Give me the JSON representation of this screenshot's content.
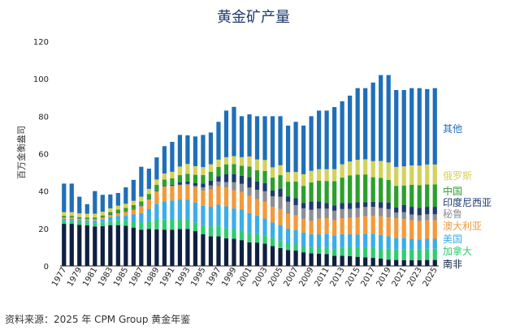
{
  "source": "资料来源：2025 年 CPM Group 黄金年鉴",
  "chart_data": {
    "type": "bar",
    "stacked": true,
    "title": "黄金矿产量",
    "ylabel": "百万金衡盎司",
    "ylim": [
      0,
      120
    ],
    "yticks": [
      0,
      20,
      40,
      60,
      80,
      100,
      120
    ],
    "grid": false,
    "legend_position": "right",
    "x": [
      1977,
      1978,
      1979,
      1980,
      1981,
      1982,
      1983,
      1984,
      1985,
      1986,
      1987,
      1988,
      1989,
      1990,
      1991,
      1992,
      1993,
      1994,
      1995,
      1996,
      1997,
      1998,
      1999,
      2000,
      2001,
      2002,
      2003,
      2004,
      2005,
      2006,
      2007,
      2008,
      2009,
      2010,
      2011,
      2012,
      2013,
      2014,
      2015,
      2016,
      2017,
      2018,
      2019,
      2020,
      2021,
      2022,
      2023,
      2024,
      2025
    ],
    "xtick_labels": [
      "1977",
      "1979",
      "1981",
      "1983",
      "1985",
      "1987",
      "1989",
      "1991",
      "1993",
      "1995",
      "1997",
      "1999",
      "2001",
      "2003",
      "2005",
      "2007",
      "2009",
      "2011",
      "2013",
      "2015",
      "2017",
      "2019",
      "2021",
      "2023",
      "2025"
    ],
    "series": [
      {
        "name": "南非",
        "color": "#0f1f40",
        "values": [
          22.5,
          22.5,
          22.0,
          21.7,
          21.1,
          21.3,
          21.8,
          21.8,
          21.5,
          20.5,
          19.4,
          19.8,
          19.6,
          19.4,
          19.4,
          19.7,
          19.8,
          18.6,
          16.9,
          15.8,
          15.8,
          14.8,
          14.5,
          13.8,
          12.6,
          12.5,
          11.9,
          10.6,
          9.6,
          8.5,
          8.2,
          7.3,
          6.8,
          6.5,
          6.4,
          5.4,
          5.4,
          5.3,
          4.9,
          4.6,
          4.3,
          3.9,
          3.4,
          3.2,
          3.1,
          3.1,
          3.1,
          3.2,
          3.2
        ]
      },
      {
        "name": "加拿大",
        "color": "#2ecc71",
        "values": [
          1.7,
          1.7,
          1.6,
          1.6,
          1.7,
          2.0,
          2.3,
          2.8,
          2.9,
          3.3,
          3.8,
          4.2,
          5.1,
          5.4,
          5.7,
          5.2,
          4.9,
          4.7,
          4.9,
          5.3,
          5.5,
          5.3,
          5.0,
          5.0,
          5.0,
          4.9,
          4.5,
          4.3,
          3.9,
          3.4,
          3.3,
          3.1,
          3.1,
          3.0,
          3.3,
          3.3,
          4.3,
          4.9,
          5.1,
          5.4,
          5.4,
          5.2,
          5.8,
          5.6,
          5.9,
          5.9,
          5.9,
          6.0,
          6.0
        ]
      },
      {
        "name": "美国",
        "color": "#3aaee8",
        "values": [
          1.0,
          1.0,
          0.9,
          1.0,
          1.4,
          1.5,
          2.0,
          2.1,
          2.4,
          3.7,
          5.0,
          6.5,
          8.5,
          9.7,
          9.9,
          10.6,
          10.6,
          10.6,
          10.3,
          10.5,
          11.4,
          11.8,
          11.2,
          11.3,
          10.7,
          9.6,
          8.9,
          8.3,
          8.5,
          8.1,
          7.7,
          7.5,
          7.1,
          7.4,
          7.5,
          7.6,
          7.3,
          6.8,
          6.7,
          7.2,
          7.5,
          7.5,
          6.6,
          6.1,
          5.9,
          5.3,
          5.2,
          5.3,
          5.3
        ]
      },
      {
        "name": "澳大利亚",
        "color": "#f39a3a",
        "values": [
          0.6,
          0.6,
          0.6,
          0.5,
          0.6,
          0.9,
          1.0,
          1.3,
          1.9,
          2.4,
          3.5,
          4.9,
          6.5,
          7.8,
          7.5,
          7.5,
          7.9,
          8.0,
          8.1,
          9.3,
          10.0,
          10.0,
          9.7,
          9.5,
          9.1,
          8.7,
          9.1,
          8.4,
          8.4,
          7.8,
          7.9,
          7.3,
          7.1,
          8.4,
          8.3,
          8.1,
          8.4,
          8.7,
          9.3,
          9.4,
          9.6,
          9.9,
          10.1,
          10.5,
          10.2,
          10.1,
          9.8,
          9.9,
          9.9
        ]
      },
      {
        "name": "秘鲁",
        "color": "#8b8f96",
        "values": [
          0.1,
          0.1,
          0.1,
          0.2,
          0.2,
          0.2,
          0.2,
          0.2,
          0.2,
          0.3,
          0.3,
          0.3,
          0.3,
          0.3,
          0.3,
          0.4,
          0.6,
          0.9,
          1.8,
          2.1,
          2.4,
          2.9,
          4.3,
          4.3,
          4.5,
          5.0,
          5.5,
          5.6,
          6.6,
          6.5,
          5.4,
          5.6,
          5.9,
          5.3,
          5.1,
          5.1,
          5.0,
          4.8,
          4.9,
          4.9,
          4.8,
          4.5,
          4.5,
          3.1,
          3.6,
          3.1,
          3.1,
          3.2,
          3.2
        ]
      },
      {
        "name": "印度尼西亚",
        "color": "#1e3a6e",
        "values": [
          0.1,
          0.1,
          0.1,
          0.1,
          0.1,
          0.1,
          0.2,
          0.2,
          0.2,
          0.2,
          0.2,
          0.3,
          0.4,
          0.4,
          0.6,
          1.2,
          1.3,
          1.4,
          2.0,
          2.6,
          2.8,
          4.3,
          4.4,
          4.3,
          5.5,
          4.5,
          4.4,
          3.2,
          4.3,
          2.9,
          3.8,
          2.8,
          4.4,
          3.9,
          3.1,
          2.8,
          3.2,
          3.2,
          3.2,
          2.6,
          2.7,
          3.0,
          3.5,
          2.7,
          3.8,
          4.1,
          4.0,
          4.0,
          4.0
        ]
      },
      {
        "name": "中国",
        "color": "#2ca02c",
        "values": [
          0.8,
          0.8,
          0.8,
          0.8,
          0.8,
          1.0,
          1.3,
          1.7,
          1.9,
          2.1,
          2.3,
          2.5,
          2.9,
          3.2,
          3.4,
          3.9,
          4.1,
          4.5,
          4.6,
          4.7,
          5.0,
          5.2,
          5.3,
          5.3,
          5.7,
          6.0,
          6.5,
          6.8,
          7.2,
          7.8,
          8.8,
          9.2,
          10.2,
          11.0,
          11.7,
          13.0,
          13.6,
          14.7,
          14.7,
          14.8,
          13.1,
          13.0,
          12.1,
          11.6,
          10.5,
          11.8,
          12.0,
          12.0,
          12.0
        ]
      },
      {
        "name": "俄罗斯",
        "color": "#d4d25a",
        "values": [
          2.0,
          2.0,
          2.0,
          2.0,
          2.0,
          2.0,
          2.0,
          2.1,
          2.2,
          2.3,
          2.5,
          2.7,
          2.9,
          3.2,
          3.5,
          4.6,
          5.3,
          4.6,
          4.2,
          4.0,
          3.9,
          3.8,
          4.3,
          4.6,
          5.4,
          5.7,
          5.8,
          5.5,
          5.3,
          5.1,
          5.1,
          6.2,
          6.2,
          6.2,
          6.3,
          6.4,
          7.1,
          7.4,
          7.9,
          8.1,
          8.6,
          9.1,
          9.3,
          10.1,
          10.2,
          10.3,
          10.5,
          10.6,
          10.6
        ]
      },
      {
        "name": "其他",
        "color": "#1f6fb8",
        "values": [
          15.2,
          15.2,
          8.9,
          5.1,
          12.1,
          9.0,
          7.4,
          6.8,
          8.8,
          11.2,
          16.0,
          10.8,
          11.8,
          14.6,
          16.0,
          16.9,
          15.3,
          15.9,
          17.2,
          17.0,
          20.2,
          24.9,
          26.3,
          21.9,
          22.5,
          23.1,
          23.4,
          27.3,
          26.2,
          24.9,
          26.8,
          26.0,
          29.2,
          31.3,
          31.3,
          33.2,
          33.7,
          35.2,
          38.3,
          38.0,
          42.0,
          45.9,
          46.7,
          41.1,
          40.8,
          41.3,
          41.4,
          40.3,
          40.8
        ]
      }
    ]
  }
}
